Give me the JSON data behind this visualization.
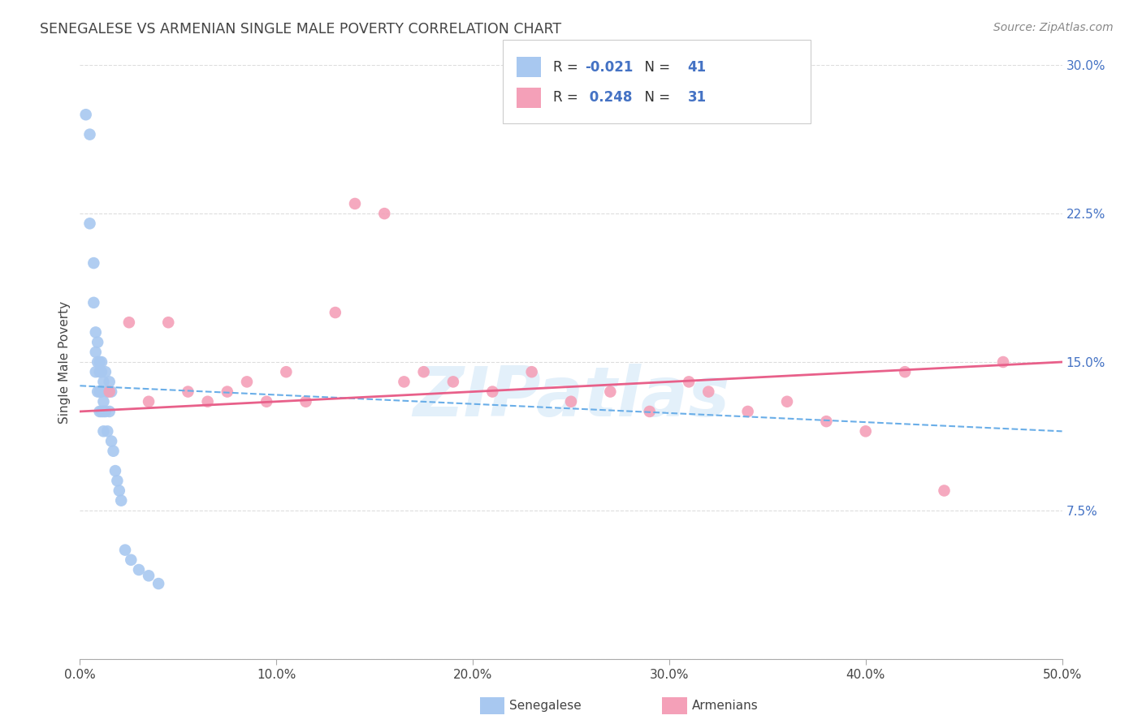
{
  "title": "SENEGALESE VS ARMENIAN SINGLE MALE POVERTY CORRELATION CHART",
  "source": "Source: ZipAtlas.com",
  "ylabel": "Single Male Poverty",
  "watermark_text": "ZIPatlas",
  "legend_blue_label": "Senegalese",
  "legend_pink_label": "Armenians",
  "R_blue": -0.021,
  "N_blue": 41,
  "R_pink": 0.248,
  "N_pink": 31,
  "blue_color": "#a8c8f0",
  "pink_color": "#f4a0b8",
  "blue_line_color": "#6aaee8",
  "pink_line_color": "#e8608a",
  "title_color": "#444444",
  "source_color": "#888888",
  "ylabel_color": "#444444",
  "ytick_color": "#4472c4",
  "xtick_color": "#444444",
  "grid_color": "#dddddd",
  "xlim": [
    0,
    50
  ],
  "ylim": [
    0,
    30
  ],
  "xlabel_vals": [
    0,
    10,
    20,
    30,
    40,
    50
  ],
  "ylabel_vals": [
    0,
    7.5,
    15.0,
    22.5,
    30.0
  ],
  "blue_trend_x": [
    0,
    50
  ],
  "blue_trend_y": [
    13.8,
    11.5
  ],
  "pink_trend_x": [
    0,
    50
  ],
  "pink_trend_y": [
    12.5,
    15.0
  ],
  "senegalese_x": [
    0.3,
    0.5,
    0.5,
    0.7,
    0.7,
    0.8,
    0.8,
    0.8,
    0.9,
    0.9,
    0.9,
    1.0,
    1.0,
    1.0,
    1.0,
    1.1,
    1.1,
    1.1,
    1.1,
    1.2,
    1.2,
    1.2,
    1.2,
    1.3,
    1.3,
    1.4,
    1.4,
    1.5,
    1.5,
    1.6,
    1.6,
    1.7,
    1.8,
    1.9,
    2.0,
    2.1,
    2.3,
    2.6,
    3.0,
    3.5,
    4.0
  ],
  "senegalese_y": [
    27.5,
    26.5,
    22.0,
    20.0,
    18.0,
    16.5,
    15.5,
    14.5,
    16.0,
    15.0,
    13.5,
    15.0,
    14.5,
    13.5,
    12.5,
    15.0,
    14.5,
    13.5,
    12.5,
    14.0,
    13.0,
    12.5,
    11.5,
    14.5,
    12.5,
    13.5,
    11.5,
    14.0,
    12.5,
    13.5,
    11.0,
    10.5,
    9.5,
    9.0,
    8.5,
    8.0,
    5.5,
    5.0,
    4.5,
    4.2,
    3.8
  ],
  "armenian_x": [
    1.5,
    2.5,
    3.5,
    4.5,
    5.5,
    6.5,
    7.5,
    8.5,
    9.5,
    10.5,
    11.5,
    13.0,
    14.0,
    15.5,
    16.5,
    17.5,
    19.0,
    21.0,
    23.0,
    25.0,
    27.0,
    29.0,
    31.0,
    32.0,
    34.0,
    36.0,
    38.0,
    40.0,
    42.0,
    44.0,
    47.0
  ],
  "armenian_y": [
    13.5,
    17.0,
    13.0,
    17.0,
    13.5,
    13.0,
    13.5,
    14.0,
    13.0,
    14.5,
    13.0,
    17.5,
    23.0,
    22.5,
    14.0,
    14.5,
    14.0,
    13.5,
    14.5,
    13.0,
    13.5,
    12.5,
    14.0,
    13.5,
    12.5,
    13.0,
    12.0,
    11.5,
    14.5,
    8.5,
    15.0
  ]
}
